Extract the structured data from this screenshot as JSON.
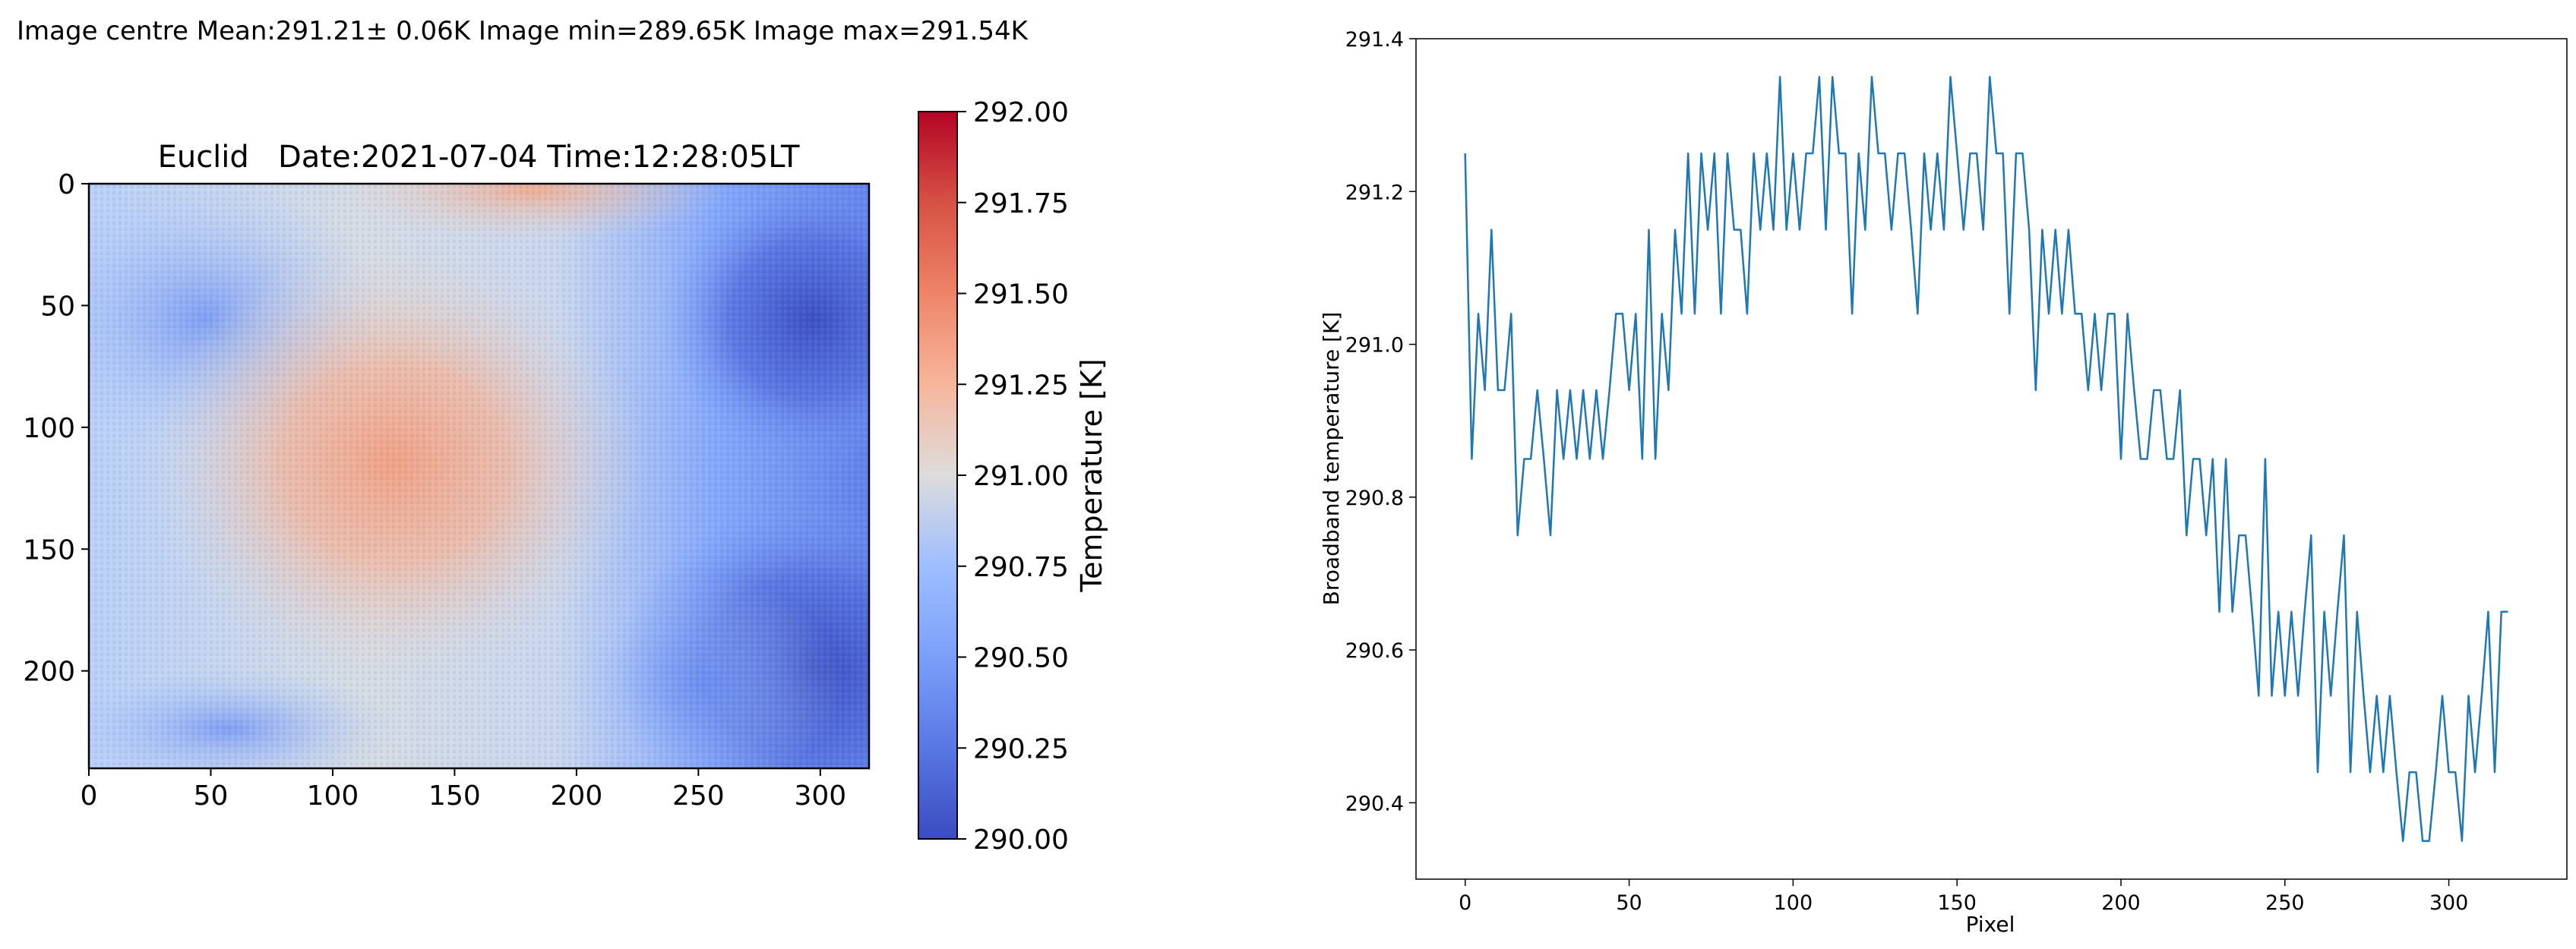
{
  "header": {
    "stats_text": "Image centre Mean:291.21± 0.06K  Image min=289.65K  Image max=291.54K"
  },
  "chart_data": [
    {
      "type": "heatmap",
      "title": "Euclid   Date:2021-07-04 Time:12:28:05LT",
      "x_ticks": [
        0,
        50,
        100,
        150,
        200,
        250,
        300
      ],
      "y_ticks": [
        0,
        50,
        100,
        150,
        200
      ],
      "xlim": [
        0,
        320
      ],
      "ylim": [
        240,
        0
      ],
      "colormap": "coolwarm",
      "colorbar": {
        "label": "Temperature [K]",
        "range": [
          290.0,
          292.0
        ],
        "ticks": [
          "290.00",
          "290.25",
          "290.50",
          "290.75",
          "291.00",
          "291.25",
          "291.50",
          "291.75",
          "292.00"
        ]
      },
      "description_fields": {
        "warm_region_center": [
          125,
          115
        ],
        "cold_regions": [
          "top-right",
          "bottom-right"
        ]
      }
    },
    {
      "type": "line",
      "title": "",
      "xlabel": "Pixel",
      "ylabel": "Broadband temperature [K]",
      "xlim": [
        -15,
        336
      ],
      "ylim": [
        290.3,
        291.4
      ],
      "x_ticks": [
        0,
        50,
        100,
        150,
        200,
        250,
        300
      ],
      "y_ticks": [
        290.4,
        290.6,
        290.8,
        291.0,
        291.2,
        291.4
      ],
      "line_color": "#1f77b4",
      "x_start": 0,
      "x_step": 2,
      "values": [
        291.25,
        290.85,
        291.04,
        290.94,
        291.15,
        290.94,
        290.94,
        291.04,
        290.75,
        290.85,
        290.85,
        290.94,
        290.85,
        290.75,
        290.94,
        290.85,
        290.94,
        290.85,
        290.94,
        290.85,
        290.94,
        290.85,
        290.94,
        291.04,
        291.04,
        290.94,
        291.04,
        290.85,
        291.15,
        290.85,
        291.04,
        290.94,
        291.15,
        291.04,
        291.25,
        291.04,
        291.25,
        291.15,
        291.25,
        291.04,
        291.25,
        291.15,
        291.15,
        291.04,
        291.25,
        291.15,
        291.25,
        291.15,
        291.35,
        291.15,
        291.25,
        291.15,
        291.25,
        291.25,
        291.35,
        291.15,
        291.35,
        291.25,
        291.25,
        291.04,
        291.25,
        291.15,
        291.35,
        291.25,
        291.25,
        291.15,
        291.25,
        291.25,
        291.15,
        291.04,
        291.25,
        291.15,
        291.25,
        291.15,
        291.35,
        291.25,
        291.15,
        291.25,
        291.25,
        291.15,
        291.35,
        291.25,
        291.25,
        291.04,
        291.25,
        291.25,
        291.15,
        290.94,
        291.15,
        291.04,
        291.15,
        291.04,
        291.15,
        291.04,
        291.04,
        290.94,
        291.04,
        290.94,
        291.04,
        291.04,
        290.85,
        291.04,
        290.94,
        290.85,
        290.85,
        290.94,
        290.94,
        290.85,
        290.85,
        290.94,
        290.75,
        290.85,
        290.85,
        290.75,
        290.85,
        290.65,
        290.85,
        290.65,
        290.75,
        290.75,
        290.65,
        290.54,
        290.85,
        290.54,
        290.65,
        290.54,
        290.65,
        290.54,
        290.65,
        290.75,
        290.44,
        290.65,
        290.54,
        290.65,
        290.75,
        290.44,
        290.65,
        290.54,
        290.44,
        290.54,
        290.44,
        290.54,
        290.44,
        290.35,
        290.44,
        290.44,
        290.35,
        290.35,
        290.44,
        290.54,
        290.44,
        290.44,
        290.35,
        290.54,
        290.44,
        290.54,
        290.65,
        290.44,
        290.65,
        290.65
      ]
    }
  ]
}
